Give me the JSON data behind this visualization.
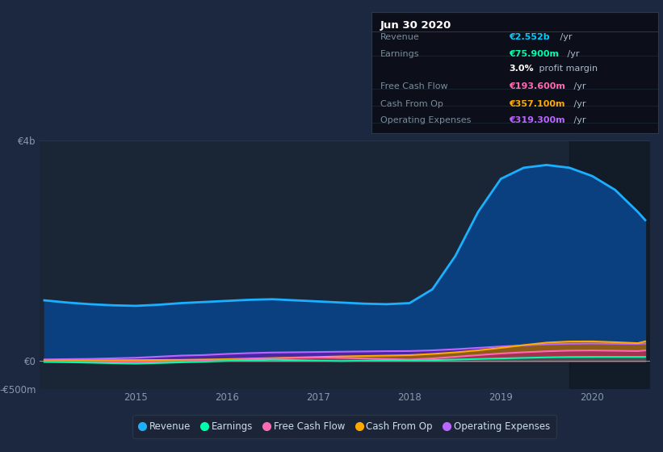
{
  "background_color": "#1c2840",
  "plot_bg_color": "#1a2535",
  "grid_color": "#263548",
  "x_years": [
    2014.0,
    2014.25,
    2014.5,
    2014.75,
    2015.0,
    2015.25,
    2015.5,
    2015.75,
    2016.0,
    2016.25,
    2016.5,
    2016.75,
    2017.0,
    2017.25,
    2017.5,
    2017.75,
    2018.0,
    2018.25,
    2018.5,
    2018.75,
    2019.0,
    2019.25,
    2019.5,
    2019.75,
    2020.0,
    2020.25,
    2020.5,
    2020.58
  ],
  "revenue": [
    1100,
    1060,
    1030,
    1010,
    1000,
    1020,
    1050,
    1070,
    1090,
    1110,
    1120,
    1100,
    1080,
    1060,
    1040,
    1030,
    1050,
    1300,
    1900,
    2700,
    3300,
    3500,
    3550,
    3500,
    3350,
    3100,
    2700,
    2552
  ],
  "operating_expenses": [
    30,
    35,
    40,
    50,
    60,
    80,
    100,
    110,
    130,
    145,
    155,
    160,
    165,
    170,
    175,
    180,
    182,
    195,
    215,
    240,
    265,
    285,
    305,
    315,
    319,
    315,
    312,
    319
  ],
  "cash_from_op": [
    10,
    12,
    14,
    16,
    18,
    20,
    22,
    28,
    35,
    45,
    55,
    65,
    75,
    85,
    92,
    100,
    108,
    130,
    158,
    195,
    240,
    290,
    335,
    355,
    357,
    342,
    325,
    357
  ],
  "free_cash_flow": [
    -5,
    -8,
    -10,
    -15,
    -18,
    -12,
    -5,
    5,
    20,
    35,
    48,
    60,
    65,
    58,
    48,
    38,
    28,
    48,
    78,
    108,
    138,
    160,
    178,
    190,
    193,
    188,
    182,
    193
  ],
  "earnings": [
    -15,
    -20,
    -28,
    -38,
    -45,
    -35,
    -22,
    -12,
    5,
    15,
    25,
    18,
    8,
    2,
    8,
    18,
    8,
    18,
    28,
    38,
    48,
    58,
    68,
    74,
    76,
    76,
    76,
    75.9
  ],
  "ylim": [
    -500,
    4000
  ],
  "yticks": [
    -500,
    0,
    4000
  ],
  "ytick_labels": [
    "-€500m",
    "€0",
    "€4b"
  ],
  "xtick_positions": [
    2015,
    2016,
    2017,
    2018,
    2019,
    2020
  ],
  "xtick_labels": [
    "2015",
    "2016",
    "2017",
    "2018",
    "2019",
    "2020"
  ],
  "shade_start": 2019.75,
  "infobox": {
    "date": "Jun 30 2020",
    "rows": [
      {
        "label": "Revenue",
        "value": "€2.552b",
        "unit": " /yr",
        "value_color": "#00ccff"
      },
      {
        "label": "Earnings",
        "value": "€75.900m",
        "unit": " /yr",
        "value_color": "#00ffaa"
      },
      {
        "label": "",
        "value": "3.0%",
        "unit": " profit margin",
        "value_color": "#ffffff"
      },
      {
        "label": "Free Cash Flow",
        "value": "€193.600m",
        "unit": " /yr",
        "value_color": "#ff69b4"
      },
      {
        "label": "Cash From Op",
        "value": "€357.100m",
        "unit": " /yr",
        "value_color": "#ffaa00"
      },
      {
        "label": "Operating Expenses",
        "value": "€319.300m",
        "unit": " /yr",
        "value_color": "#bb66ff"
      }
    ]
  },
  "revenue_fill_color": "#0a4080",
  "revenue_line_color": "#1ab0ff",
  "opex_fill_color": "#5522aa",
  "opex_line_color": "#bb66ff",
  "cfo_fill_color": "#996600",
  "cfo_line_color": "#ffaa00",
  "fcf_fill_color": "#aa2266",
  "fcf_line_color": "#ff69b4",
  "earn_fill_color": "#006655",
  "earn_line_color": "#00ffaa",
  "legend": [
    {
      "label": "Revenue",
      "color": "#1ab0ff"
    },
    {
      "label": "Earnings",
      "color": "#00ffaa"
    },
    {
      "label": "Free Cash Flow",
      "color": "#ff69b4"
    },
    {
      "label": "Cash From Op",
      "color": "#ffaa00"
    },
    {
      "label": "Operating Expenses",
      "color": "#bb66ff"
    }
  ]
}
